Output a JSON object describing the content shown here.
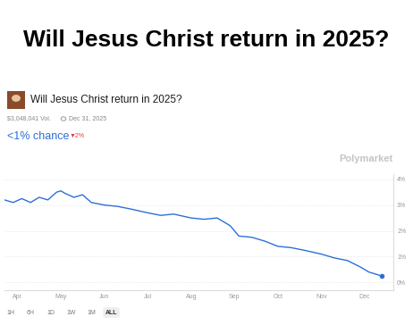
{
  "headline": "Will Jesus Christ return in 2025?",
  "chart_data": {
    "type": "line",
    "title": "Will Jesus Christ return in 2025?",
    "volume": "$3,048,041 Vol.",
    "end_date": "Dec 31, 2025",
    "probability_label": "<1% chance",
    "change_label": "▼2%",
    "source": "Polymarket",
    "range_buttons": [
      "1H",
      "6H",
      "1D",
      "1W",
      "1M",
      "ALL"
    ],
    "x": [
      -0.3,
      -0.1,
      0.1,
      0.3,
      0.5,
      0.7,
      0.9,
      1.0,
      1.1,
      1.3,
      1.5,
      1.7,
      2.0,
      2.3,
      2.6,
      3.0,
      3.3,
      3.6,
      4.0,
      4.3,
      4.6,
      4.9,
      5.1,
      5.4,
      5.7,
      6.0,
      6.3,
      6.6,
      7.0,
      7.3,
      7.6,
      7.9,
      8.1,
      8.3,
      8.39
    ],
    "values": [
      3.2,
      3.1,
      3.25,
      3.1,
      3.3,
      3.2,
      3.5,
      3.55,
      3.45,
      3.3,
      3.4,
      3.1,
      3.0,
      2.95,
      2.85,
      2.7,
      2.6,
      2.65,
      2.5,
      2.45,
      2.5,
      2.2,
      1.8,
      1.75,
      1.6,
      1.4,
      1.35,
      1.25,
      1.1,
      0.95,
      0.85,
      0.6,
      0.4,
      0.3,
      0.25
    ],
    "color": "#2d6fd6",
    "xlim": [
      -0.3,
      8.66
    ],
    "xticks": [
      {
        "value": 0,
        "label": "Apr"
      },
      {
        "value": 1,
        "label": "May"
      },
      {
        "value": 2,
        "label": "Jun"
      },
      {
        "value": 3,
        "label": "Jul"
      },
      {
        "value": 4,
        "label": "Aug"
      },
      {
        "value": 5,
        "label": "Sep"
      },
      {
        "value": 6,
        "label": "Oct"
      },
      {
        "value": 7,
        "label": "Nov"
      },
      {
        "value": 8,
        "label": "Dec"
      }
    ],
    "ylim": [
      -0.3,
      4.2
    ],
    "yticks": [
      {
        "value": 0,
        "label": "0%"
      },
      {
        "value": 1,
        "label": "1%"
      },
      {
        "value": 2,
        "label": "2%"
      },
      {
        "value": 3,
        "label": "3%"
      },
      {
        "value": 4,
        "label": "4%"
      }
    ],
    "grid": true
  }
}
